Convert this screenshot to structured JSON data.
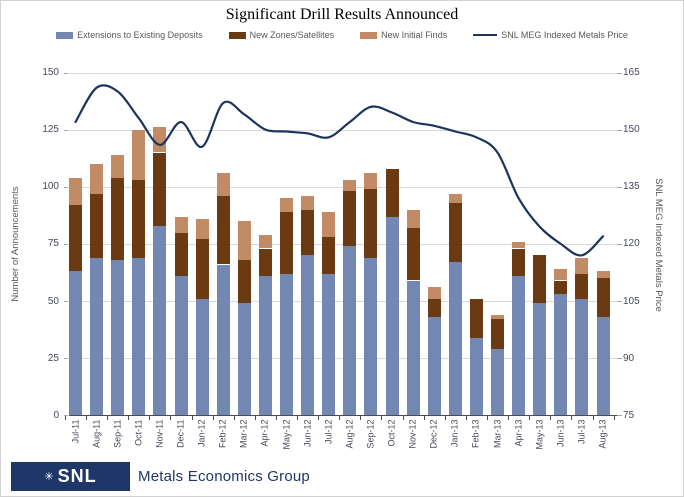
{
  "title": "Significant Drill Results Announced",
  "legend": [
    {
      "label": "Extensions to Existing Deposits",
      "color": "#7387b3",
      "type": "swatch"
    },
    {
      "label": "New Zones/Satellites",
      "color": "#6a3b13",
      "type": "swatch"
    },
    {
      "label": "New Initial Finds",
      "color": "#c28b66",
      "type": "swatch"
    },
    {
      "label": "SNL MEG Indexed Metals Price",
      "color": "#1c355e",
      "type": "line"
    }
  ],
  "logo": {
    "icon": "✳",
    "abbr": "SNL",
    "name": "Metals Economics Group",
    "box_color": "#1e3668"
  },
  "chart_data": {
    "type": "bar",
    "subtype": "stacked-bars-with-line",
    "grid": true,
    "categories": [
      "Jul-11",
      "Aug-11",
      "Sep-11",
      "Oct-11",
      "Nov-11",
      "Dec-11",
      "Jan-12",
      "Feb-12",
      "Mar-12",
      "Apr-12",
      "May-12",
      "Jun-12",
      "Jul-12",
      "Aug-12",
      "Sep-12",
      "Oct-12",
      "Nov-12",
      "Dec-12",
      "Jan-13",
      "Feb-13",
      "Mar-13",
      "Apr-13",
      "May-13",
      "Jun-13",
      "Jul-13",
      "Aug-13"
    ],
    "left_axis": {
      "title": "Number of Announcements",
      "min": 0,
      "max": 150,
      "step": 25,
      "ticks": [
        0,
        25,
        50,
        75,
        100,
        125,
        150
      ]
    },
    "right_axis": {
      "title": "SNL MEG Indexed Metals Price",
      "min": 75,
      "max": 165,
      "step": 15,
      "ticks": [
        75,
        90,
        105,
        120,
        135,
        150,
        165
      ]
    },
    "series": [
      {
        "name": "Extensions to Existing Deposits",
        "type": "bar",
        "stacked": true,
        "axis": "left",
        "color": "#7387b3",
        "values": [
          63,
          69,
          68,
          69,
          83,
          61,
          51,
          66,
          49,
          61,
          62,
          70,
          62,
          74,
          69,
          87,
          59,
          43,
          67,
          34,
          29,
          61,
          49,
          53,
          51,
          43
        ]
      },
      {
        "name": "New Zones/Satellites",
        "type": "bar",
        "stacked": true,
        "axis": "left",
        "color": "#6a3b13",
        "values": [
          29,
          28,
          36,
          34,
          32,
          19,
          26,
          30,
          19,
          12,
          27,
          20,
          16,
          24,
          30,
          21,
          23,
          8,
          26,
          17,
          13,
          12,
          21,
          6,
          11,
          17
        ]
      },
      {
        "name": "New Initial Finds",
        "type": "bar",
        "stacked": true,
        "axis": "left",
        "color": "#c28b66",
        "values": [
          12,
          13,
          10,
          22,
          11,
          7,
          9,
          10,
          17,
          6,
          6,
          6,
          11,
          5,
          7,
          0,
          8,
          5,
          4,
          0,
          2,
          3,
          0,
          5,
          7,
          3
        ]
      },
      {
        "name": "SNL MEG Indexed Metals Price",
        "type": "line",
        "axis": "right",
        "color": "#1c355e",
        "values": [
          152,
          161,
          160,
          153,
          146,
          152,
          145.5,
          157,
          154,
          150,
          149.5,
          149,
          148,
          152,
          156,
          154.5,
          152,
          151,
          149.5,
          148,
          144,
          132,
          124.5,
          120,
          117,
          122
        ]
      }
    ]
  }
}
